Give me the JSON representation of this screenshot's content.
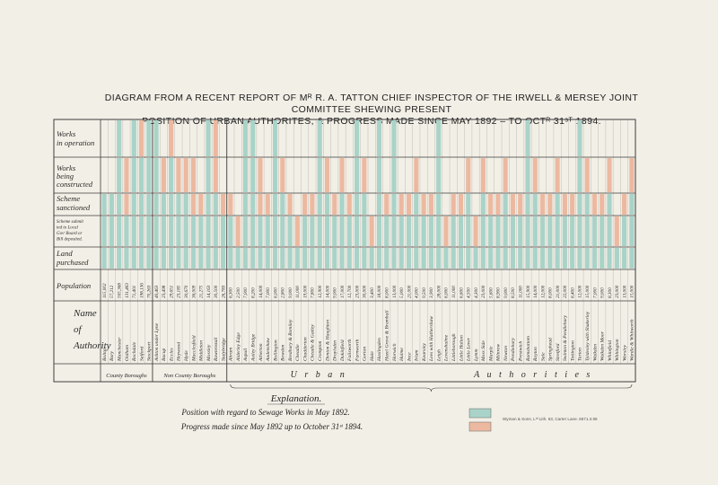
{
  "header": {
    "title_line1": "DIAGRAM FROM A RECENT REPORT OF Mᴿ R. A. TATTON CHIEF INSPECTOR OF THE IRWELL & MERSEY JOINT COMMITTEE SHEWING PRESENT",
    "title_line2": "POSITION OF URBAN AUTHORITES, & PROGRESS MADE SINCE MAY 1892 – TO OCTᴿ 31ˢᵀ 1894."
  },
  "row_labels": {
    "works_operation": [
      "Works",
      "in operation"
    ],
    "works_constructed": [
      "Works",
      "being",
      "constructed"
    ],
    "scheme_sanctioned": [
      "Scheme",
      "sanctioned"
    ],
    "scheme_submitted": [
      "Scheme submit",
      "ted to Local",
      "Govᵗ Board or",
      "Bill deposited."
    ],
    "land_purchased": [
      "Land",
      "purchased"
    ],
    "population": "Population",
    "name_of_authority": [
      "Name",
      "of",
      "Authority"
    ]
  },
  "groups": {
    "county_boroughs": "County Boroughs",
    "non_county_boroughs": "Non County Boroughs",
    "urban_authorities_left": "U r b a n",
    "urban_authorities_right": "A u t h o r i t i e s"
  },
  "explanation": {
    "title": "Explanation.",
    "line1": "Position with regard to Sewage Works in May 1892.",
    "line2": "Progress made since May 1892 up to October 31ˢᵗ 1894."
  },
  "imprint": {
    "printer": "Wyman & Sons, Lᵗᵈ Lith. 63, Carter Lane.",
    "ref": "6571.3.95"
  },
  "colors": {
    "may_1892": "#a9d3c8",
    "progress_1894": "#ecb9a0",
    "grid": "#3d3d3d",
    "paper": "#f2efe6"
  },
  "chart_data": {
    "type": "table",
    "legend_placement": "bottom",
    "stages": [
      "Works in operation",
      "Works being constructed",
      "Scheme sanctioned",
      "Scheme submitted to Local Govᵗ Board or Bill deposited.",
      "Land purchased"
    ],
    "status_codes": {
      "g": "Position with regard to Sewage Works in May 1892.",
      "o": "Progress made since May 1892 up to October 31ˢᵗ 1894.",
      "": "none"
    },
    "authorities": [
      {
        "name": "Bolton",
        "population": "115,002",
        "group": "county",
        "stages": [
          "",
          "",
          "g",
          "g",
          "g"
        ]
      },
      {
        "name": "Bury",
        "population": "57,212",
        "group": "county",
        "stages": [
          "",
          "",
          "g",
          "g",
          "g"
        ]
      },
      {
        "name": "Manchester",
        "population": "505,368",
        "group": "county",
        "stages": [
          "g",
          "g",
          "g",
          "g",
          "g"
        ]
      },
      {
        "name": "Oldham",
        "population": "131,463",
        "group": "county",
        "stages": [
          "",
          "o",
          "o",
          "g",
          "g"
        ]
      },
      {
        "name": "Rochdale",
        "population": "71,401",
        "group": "county",
        "stages": [
          "g",
          "g",
          "g",
          "g",
          "g"
        ]
      },
      {
        "name": "Salford",
        "population": "198,136",
        "group": "county",
        "stages": [
          "o",
          "g",
          "g",
          "g",
          "g"
        ]
      },
      {
        "name": "Stockport",
        "population": "70,263",
        "group": "county",
        "stages": [
          "g",
          "g",
          "g",
          "g",
          "g"
        ]
      },
      {
        "name": "Ashton under Lyne",
        "population": "40,463",
        "group": "non-county",
        "stages": [
          "g",
          "g",
          "g",
          "g",
          "g"
        ]
      },
      {
        "name": "Bacup",
        "population": "23,498",
        "group": "non-county",
        "stages": [
          "",
          "o",
          "g",
          "g",
          "g"
        ]
      },
      {
        "name": "Eccles",
        "population": "29,651",
        "group": "non-county",
        "stages": [
          "o",
          "g",
          "g",
          "g",
          "g"
        ]
      },
      {
        "name": "Heywood",
        "population": "23,185",
        "group": "non-county",
        "stages": [
          "",
          "o",
          "g",
          "g",
          "g"
        ]
      },
      {
        "name": "Hyde",
        "population": "30,670",
        "group": "non-county",
        "stages": [
          "",
          "o",
          "g",
          "g",
          "g"
        ]
      },
      {
        "name": "Macclesfield",
        "population": "36,009",
        "group": "non-county",
        "stages": [
          "",
          "o",
          "o",
          "g",
          "g"
        ]
      },
      {
        "name": "Middleton",
        "population": "21,275",
        "group": "non-county",
        "stages": [
          "",
          "",
          "o",
          "g",
          "g"
        ]
      },
      {
        "name": "Mossley",
        "population": "14,163",
        "group": "non-county",
        "stages": [
          "g",
          "g",
          "g",
          "g",
          "g"
        ]
      },
      {
        "name": "Rawtenstall",
        "population": "30,500",
        "group": "non-county",
        "stages": [
          "o",
          "o",
          "g",
          "g",
          "g"
        ]
      },
      {
        "name": "Stalybridge",
        "population": "26,783",
        "group": "non-county",
        "stages": [
          "",
          "",
          "o",
          "g",
          "g"
        ]
      },
      {
        "name": "Abram",
        "population": "6,300",
        "group": "urban",
        "stages": [
          "",
          "",
          "o",
          "g",
          "g"
        ]
      },
      {
        "name": "Alderley Edge",
        "population": "2,500",
        "group": "urban",
        "stages": [
          "",
          "",
          "",
          "o",
          "g"
        ]
      },
      {
        "name": "Aspull",
        "population": "7,000",
        "group": "urban",
        "stages": [
          "g",
          "g",
          "g",
          "g",
          "g"
        ]
      },
      {
        "name": "Astley Bridge",
        "population": "8,200",
        "group": "urban",
        "stages": [
          "g",
          "g",
          "g",
          "g",
          "g"
        ]
      },
      {
        "name": "Atherton",
        "population": "14,000",
        "group": "urban",
        "stages": [
          "",
          "o",
          "o",
          "g",
          "g"
        ]
      },
      {
        "name": "Audenshaw",
        "population": "7,000",
        "group": "urban",
        "stages": [
          "",
          "",
          "o",
          "g",
          "g"
        ]
      },
      {
        "name": "Bollington",
        "population": "6,000",
        "group": "urban",
        "stages": [
          "g",
          "g",
          "g",
          "g",
          "g"
        ]
      },
      {
        "name": "Bowdon",
        "population": "2,800",
        "group": "urban",
        "stages": [
          "",
          "o",
          "g",
          "g",
          "g"
        ]
      },
      {
        "name": "Bredbury & Romiley",
        "population": "9,000",
        "group": "urban",
        "stages": [
          "",
          "",
          "o",
          "g",
          "g"
        ]
      },
      {
        "name": "Cheadle",
        "population": "11,000",
        "group": "urban",
        "stages": [
          "",
          "",
          "",
          "o",
          "g"
        ]
      },
      {
        "name": "Chadderton",
        "population": "19,000",
        "group": "urban",
        "stages": [
          "",
          "",
          "o",
          "g",
          "g"
        ]
      },
      {
        "name": "Cheadle & Gatley",
        "population": "7,800",
        "group": "urban",
        "stages": [
          "",
          "",
          "o",
          "g",
          "g"
        ]
      },
      {
        "name": "Crompton",
        "population": "12,900",
        "group": "urban",
        "stages": [
          "g",
          "g",
          "g",
          "g",
          "g"
        ]
      },
      {
        "name": "Denton & Haughton",
        "population": "14,000",
        "group": "urban",
        "stages": [
          "",
          "o",
          "g",
          "g",
          "g"
        ]
      },
      {
        "name": "Droylsden",
        "population": "9,000",
        "group": "urban",
        "stages": [
          "",
          "",
          "o",
          "g",
          "g"
        ]
      },
      {
        "name": "Dukinfield",
        "population": "17,000",
        "group": "urban",
        "stages": [
          "",
          "o",
          "g",
          "g",
          "g"
        ]
      },
      {
        "name": "Failsworth",
        "population": "12,700",
        "group": "urban",
        "stages": [
          "",
          "",
          "o",
          "g",
          "g"
        ]
      },
      {
        "name": "Farnworth",
        "population": "23,000",
        "group": "urban",
        "stages": [
          "g",
          "g",
          "g",
          "g",
          "g"
        ]
      },
      {
        "name": "Gorton",
        "population": "30,000",
        "group": "urban",
        "stages": [
          "",
          "o",
          "g",
          "g",
          "g"
        ]
      },
      {
        "name": "Hale",
        "population": "3,400",
        "group": "urban",
        "stages": [
          "",
          "",
          "",
          "o",
          "g"
        ]
      },
      {
        "name": "Haslingden",
        "population": "18,000",
        "group": "urban",
        "stages": [
          "g",
          "g",
          "g",
          "g",
          "g"
        ]
      },
      {
        "name": "Hazel Grove & Bramhall",
        "population": "8,000",
        "group": "urban",
        "stages": [
          "",
          "",
          "o",
          "g",
          "g"
        ]
      },
      {
        "name": "Horwich",
        "population": "13,000",
        "group": "urban",
        "stages": [
          "g",
          "g",
          "g",
          "g",
          "g"
        ]
      },
      {
        "name": "Hulme",
        "population": "5,000",
        "group": "urban",
        "stages": [
          "",
          "",
          "o",
          "g",
          "g"
        ]
      },
      {
        "name": "Ince",
        "population": "21,000",
        "group": "urban",
        "stages": [
          "",
          "",
          "o",
          "g",
          "g"
        ]
      },
      {
        "name": "Irlam",
        "population": "4,000",
        "group": "urban",
        "stages": [
          "",
          "o",
          "g",
          "g",
          "g"
        ]
      },
      {
        "name": "Kearsley",
        "population": "9,500",
        "group": "urban",
        "stages": [
          "",
          "",
          "o",
          "g",
          "g"
        ]
      },
      {
        "name": "Lees with Hathershaw",
        "population": "3,900",
        "group": "urban",
        "stages": [
          "",
          "",
          "o",
          "g",
          "g"
        ]
      },
      {
        "name": "Leigh",
        "population": "28,000",
        "group": "urban",
        "stages": [
          "g",
          "g",
          "g",
          "g",
          "g"
        ]
      },
      {
        "name": "Levenshulme",
        "population": "6,000",
        "group": "urban",
        "stages": [
          "",
          "",
          "",
          "o",
          "g"
        ]
      },
      {
        "name": "Littleborough",
        "population": "11,000",
        "group": "urban",
        "stages": [
          "",
          "",
          "o",
          "g",
          "g"
        ]
      },
      {
        "name": "Little Hulton",
        "population": "6,600",
        "group": "urban",
        "stages": [
          "",
          "",
          "o",
          "g",
          "g"
        ]
      },
      {
        "name": "Little Lever",
        "population": "4,500",
        "group": "urban",
        "stages": [
          "",
          "o",
          "g",
          "g",
          "g"
        ]
      },
      {
        "name": "Lymm",
        "population": "4,300",
        "group": "urban",
        "stages": [
          "",
          "",
          "",
          "o",
          "g"
        ]
      },
      {
        "name": "Moss Side",
        "population": "23,000",
        "group": "urban",
        "stages": [
          "",
          "o",
          "g",
          "g",
          "g"
        ]
      },
      {
        "name": "Marple",
        "population": "5,600",
        "group": "urban",
        "stages": [
          "",
          "",
          "o",
          "g",
          "g"
        ]
      },
      {
        "name": "Milnrow",
        "population": "8,900",
        "group": "urban",
        "stages": [
          "",
          "",
          "o",
          "g",
          "g"
        ]
      },
      {
        "name": "Newton",
        "population": "9,000",
        "group": "urban",
        "stages": [
          "",
          "o",
          "g",
          "g",
          "g"
        ]
      },
      {
        "name": "Pendlebury",
        "population": "8,500",
        "group": "urban",
        "stages": [
          "",
          "",
          "o",
          "g",
          "g"
        ]
      },
      {
        "name": "Prestwich",
        "population": "11,000",
        "group": "urban",
        "stages": [
          "",
          "",
          "o",
          "g",
          "g"
        ]
      },
      {
        "name": "Ramsbottom",
        "population": "15,900",
        "group": "urban",
        "stages": [
          "g",
          "g",
          "g",
          "g",
          "g"
        ]
      },
      {
        "name": "Royton",
        "population": "14,000",
        "group": "urban",
        "stages": [
          "",
          "o",
          "g",
          "g",
          "g"
        ]
      },
      {
        "name": "Sale",
        "population": "12,000",
        "group": "urban",
        "stages": [
          "",
          "",
          "o",
          "g",
          "g"
        ]
      },
      {
        "name": "Springhead",
        "population": "8,000",
        "group": "urban",
        "stages": [
          "",
          "",
          "o",
          "g",
          "g"
        ]
      },
      {
        "name": "Stretford",
        "population": "21,000",
        "group": "urban",
        "stages": [
          "",
          "o",
          "g",
          "g",
          "g"
        ]
      },
      {
        "name": "Swinton & Pendlebury",
        "population": "22,000",
        "group": "urban",
        "stages": [
          "",
          "",
          "o",
          "g",
          "g"
        ]
      },
      {
        "name": "Tottington",
        "population": "6,400",
        "group": "urban",
        "stages": [
          "",
          "",
          "o",
          "g",
          "g"
        ]
      },
      {
        "name": "Turton",
        "population": "12,000",
        "group": "urban",
        "stages": [
          "g",
          "g",
          "g",
          "g",
          "g"
        ]
      },
      {
        "name": "Tyldesley with Shakerley",
        "population": "15,000",
        "group": "urban",
        "stages": [
          "",
          "o",
          "g",
          "g",
          "g"
        ]
      },
      {
        "name": "Walkden",
        "population": "7,000",
        "group": "urban",
        "stages": [
          "",
          "",
          "o",
          "g",
          "g"
        ]
      },
      {
        "name": "Walkden Moor",
        "population": "9,000",
        "group": "urban",
        "stages": [
          "",
          "",
          "o",
          "g",
          "g"
        ]
      },
      {
        "name": "Whitefield",
        "population": "8,300",
        "group": "urban",
        "stages": [
          "",
          "o",
          "g",
          "g",
          "g"
        ]
      },
      {
        "name": "Withington",
        "population": "23,000",
        "group": "urban",
        "stages": [
          "",
          "",
          "",
          "o",
          "g"
        ]
      },
      {
        "name": "Worsley",
        "population": "13,000",
        "group": "urban",
        "stages": [
          "",
          "",
          "o",
          "g",
          "g"
        ]
      },
      {
        "name": "Wardle & Whitworth",
        "population": "15,000",
        "group": "urban",
        "stages": [
          "",
          "o",
          "g",
          "g",
          "g"
        ]
      }
    ]
  }
}
